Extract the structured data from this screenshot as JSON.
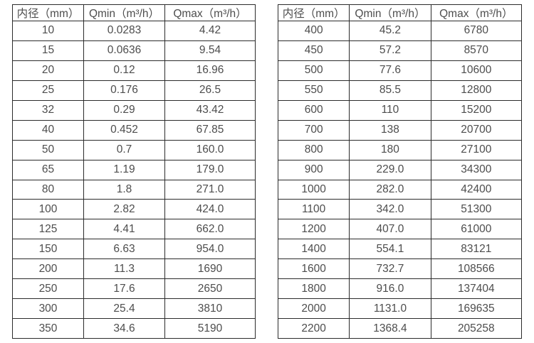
{
  "tables": [
    {
      "name": "flow-table-small-diameters",
      "headers": [
        "内径（mm）",
        "Qmin（m³/h）",
        "Qmax（m³/h）"
      ],
      "rows": [
        [
          "10",
          "0.0283",
          "4.42"
        ],
        [
          "15",
          "0.0636",
          "9.54"
        ],
        [
          "20",
          "0.12",
          "16.96"
        ],
        [
          "25",
          "0.176",
          "26.5"
        ],
        [
          "32",
          "0.29",
          "43.42"
        ],
        [
          "40",
          "0.452",
          "67.85"
        ],
        [
          "50",
          "0.7",
          "160.0"
        ],
        [
          "65",
          "1.19",
          "179.0"
        ],
        [
          "80",
          "1.8",
          "271.0"
        ],
        [
          "100",
          "2.82",
          "424.0"
        ],
        [
          "125",
          "4.41",
          "662.0"
        ],
        [
          "150",
          "6.63",
          "954.0"
        ],
        [
          "200",
          "11.3",
          "1690"
        ],
        [
          "250",
          "17.6",
          "2650"
        ],
        [
          "300",
          "25.4",
          "3810"
        ],
        [
          "350",
          "34.6",
          "5190"
        ]
      ]
    },
    {
      "name": "flow-table-large-diameters",
      "headers": [
        "内径（mm）",
        "Qmin（m³/h）",
        "Qmax（m³/h）"
      ],
      "rows": [
        [
          "400",
          "45.2",
          "6780"
        ],
        [
          "450",
          "57.2",
          "8570"
        ],
        [
          "500",
          "77.6",
          "10600"
        ],
        [
          "550",
          "85.5",
          "12800"
        ],
        [
          "600",
          "110",
          "15200"
        ],
        [
          "700",
          "138",
          "20700"
        ],
        [
          "800",
          "180",
          "27100"
        ],
        [
          "900",
          "229.0",
          "34300"
        ],
        [
          "1000",
          "282.0",
          "42400"
        ],
        [
          "1100",
          "342.0",
          "51300"
        ],
        [
          "1200",
          "407.0",
          "61000"
        ],
        [
          "1400",
          "554.1",
          "83121"
        ],
        [
          "1600",
          "732.7",
          "108566"
        ],
        [
          "1800",
          "916.0",
          "137404"
        ],
        [
          "2000",
          "1131.0",
          "169635"
        ],
        [
          "2200",
          "1368.4",
          "205258"
        ]
      ]
    }
  ],
  "colors": {
    "border": "#2b2b2b",
    "text": "#4d4d4d",
    "background": "#ffffff"
  }
}
